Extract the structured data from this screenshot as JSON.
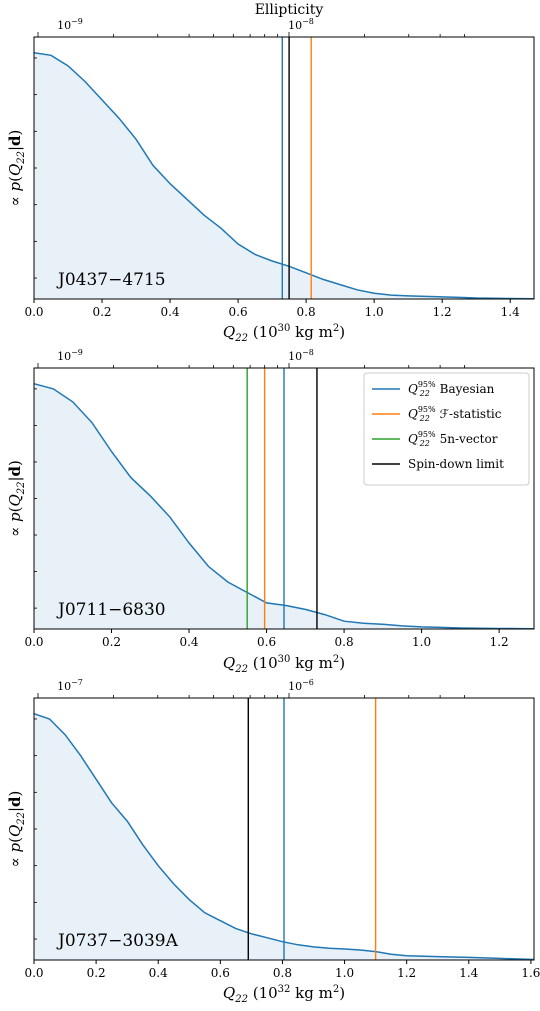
{
  "figure": {
    "top_label": "Ellipticity"
  },
  "legend": [
    {
      "label_main": "Q",
      "label_sub": "22",
      "label_sup": "95%",
      "label_rest": " Bayesian",
      "color": "#1f77b4"
    },
    {
      "label_main": "Q",
      "label_sub": "22",
      "label_sup": "95%",
      "label_rest": " ℱ-statistic",
      "color": "#ff7f0e"
    },
    {
      "label_main": "Q",
      "label_sub": "22",
      "label_sup": "95%",
      "label_rest": " 5n-vector",
      "color": "#2ca02c"
    },
    {
      "label_main": "",
      "label_sub": "",
      "label_sup": "",
      "label_rest": "Spin-down limit",
      "color": "#000000"
    }
  ],
  "chart_data": [
    {
      "type": "area",
      "pulsar": "J0437−4715",
      "ylabel": "∝ p(Q22|d)",
      "xlabel": "Q22 (10^30 kg m^2)",
      "xlabel_main": "Q",
      "xlabel_sub": "22",
      "xlabel_unit": " (10",
      "xlabel_exp": "30",
      "xlabel_unit2": " kg m",
      "xlabel_exp2": "2",
      "xlabel_close": ")",
      "xlim": [
        0,
        1.47
      ],
      "xticks": [
        0.0,
        0.2,
        0.4,
        0.6,
        0.8,
        1.0,
        1.2,
        1.4
      ],
      "xticklabels": [
        "0.0",
        "0.2",
        "0.4",
        "0.6",
        "0.8",
        "1.0",
        "1.2",
        "1.4"
      ],
      "top_axis_labels": [
        {
          "base": "10",
          "exp": "−9",
          "at": 0.01
        },
        {
          "base": "10",
          "exp": "−8",
          "at": 0.75
        }
      ],
      "ylim": [
        0,
        1.0
      ],
      "posterior": {
        "x": [
          0.0,
          0.05,
          0.1,
          0.15,
          0.2,
          0.25,
          0.3,
          0.35,
          0.4,
          0.45,
          0.5,
          0.55,
          0.6,
          0.65,
          0.7,
          0.75,
          0.8,
          0.85,
          0.9,
          0.95,
          1.0,
          1.05,
          1.1,
          1.15,
          1.2,
          1.25,
          1.3,
          1.35,
          1.4,
          1.47
        ],
        "y": [
          0.94,
          0.93,
          0.89,
          0.83,
          0.76,
          0.69,
          0.61,
          0.51,
          0.44,
          0.38,
          0.32,
          0.27,
          0.21,
          0.17,
          0.145,
          0.125,
          0.1,
          0.075,
          0.055,
          0.035,
          0.022,
          0.015,
          0.012,
          0.01,
          0.008,
          0.006,
          0.004,
          0.003,
          0.002,
          0.001
        ]
      },
      "lines": [
        {
          "name": "Q22 95% Bayesian",
          "x": 0.73,
          "color": "#1f77b4"
        },
        {
          "name": "Spin-down limit",
          "x": 0.75,
          "color": "#000000"
        },
        {
          "name": "Q22 95% F-statistic",
          "x": 0.815,
          "color": "#ff7f0e"
        }
      ]
    },
    {
      "type": "area",
      "pulsar": "J0711−6830",
      "ylabel": "∝ p(Q22|d)",
      "xlabel": "Q22 (10^30 kg m^2)",
      "xlabel_main": "Q",
      "xlabel_sub": "22",
      "xlabel_unit": " (10",
      "xlabel_exp": "30",
      "xlabel_unit2": " kg m",
      "xlabel_exp2": "2",
      "xlabel_close": ")",
      "xlim": [
        0,
        1.29
      ],
      "xticks": [
        0.0,
        0.2,
        0.4,
        0.6,
        0.8,
        1.0,
        1.2
      ],
      "xticklabels": [
        "0.0",
        "0.2",
        "0.4",
        "0.6",
        "0.8",
        "1.0",
        "1.2"
      ],
      "top_axis_labels": [
        {
          "base": "10",
          "exp": "−9",
          "at": 0.01
        },
        {
          "base": "10",
          "exp": "−8",
          "at": 0.75
        }
      ],
      "ylim": [
        0,
        1.0
      ],
      "posterior": {
        "x": [
          0.0,
          0.05,
          0.1,
          0.15,
          0.2,
          0.25,
          0.3,
          0.35,
          0.4,
          0.45,
          0.5,
          0.55,
          0.6,
          0.65,
          0.7,
          0.75,
          0.8,
          0.85,
          0.9,
          0.95,
          1.0,
          1.05,
          1.1,
          1.15,
          1.2,
          1.29
        ],
        "y": [
          0.94,
          0.92,
          0.87,
          0.79,
          0.68,
          0.58,
          0.51,
          0.43,
          0.33,
          0.24,
          0.18,
          0.14,
          0.1,
          0.09,
          0.075,
          0.055,
          0.03,
          0.022,
          0.018,
          0.012,
          0.008,
          0.006,
          0.004,
          0.003,
          0.002,
          0.001
        ]
      },
      "lines": [
        {
          "name": "Q22 95% 5n-vector",
          "x": 0.55,
          "color": "#2ca02c"
        },
        {
          "name": "Q22 95% F-statistic",
          "x": 0.595,
          "color": "#ff7f0e"
        },
        {
          "name": "Q22 95% Bayesian",
          "x": 0.645,
          "color": "#1f77b4"
        },
        {
          "name": "Spin-down limit",
          "x": 0.73,
          "color": "#000000"
        }
      ]
    },
    {
      "type": "area",
      "pulsar": "J0737−3039A",
      "ylabel": "∝ p(Q22|d)",
      "xlabel": "Q22 (10^32 kg m^2)",
      "xlabel_main": "Q",
      "xlabel_sub": "22",
      "xlabel_unit": " (10",
      "xlabel_exp": "32",
      "xlabel_unit2": " kg m",
      "xlabel_exp2": "2",
      "xlabel_close": ")",
      "xlim": [
        0,
        1.61
      ],
      "xticks": [
        0.0,
        0.2,
        0.4,
        0.6,
        0.8,
        1.0,
        1.2,
        1.4,
        1.6
      ],
      "xticklabels": [
        "0.0",
        "0.2",
        "0.4",
        "0.6",
        "0.8",
        "1.0",
        "1.2",
        "1.4",
        "1.6"
      ],
      "top_axis_labels": [
        {
          "base": "10",
          "exp": "−7",
          "at": 0.01
        },
        {
          "base": "10",
          "exp": "−6",
          "at": 0.68
        }
      ],
      "ylim": [
        0,
        1.0
      ],
      "posterior": {
        "x": [
          0.0,
          0.05,
          0.1,
          0.15,
          0.2,
          0.25,
          0.3,
          0.35,
          0.4,
          0.45,
          0.5,
          0.55,
          0.6,
          0.65,
          0.7,
          0.75,
          0.8,
          0.85,
          0.9,
          0.95,
          1.0,
          1.05,
          1.1,
          1.15,
          1.2,
          1.3,
          1.4,
          1.5,
          1.61
        ],
        "y": [
          0.94,
          0.92,
          0.86,
          0.78,
          0.69,
          0.6,
          0.53,
          0.44,
          0.36,
          0.29,
          0.23,
          0.18,
          0.15,
          0.12,
          0.1,
          0.085,
          0.07,
          0.058,
          0.05,
          0.045,
          0.042,
          0.038,
          0.032,
          0.022,
          0.016,
          0.013,
          0.01,
          0.006,
          0.002
        ]
      },
      "lines": [
        {
          "name": "Spin-down limit",
          "x": 0.69,
          "color": "#000000"
        },
        {
          "name": "Q22 95% Bayesian",
          "x": 0.805,
          "color": "#1f77b4"
        },
        {
          "name": "Q22 95% F-statistic",
          "x": 1.1,
          "color": "#ff7f0e"
        }
      ]
    }
  ]
}
